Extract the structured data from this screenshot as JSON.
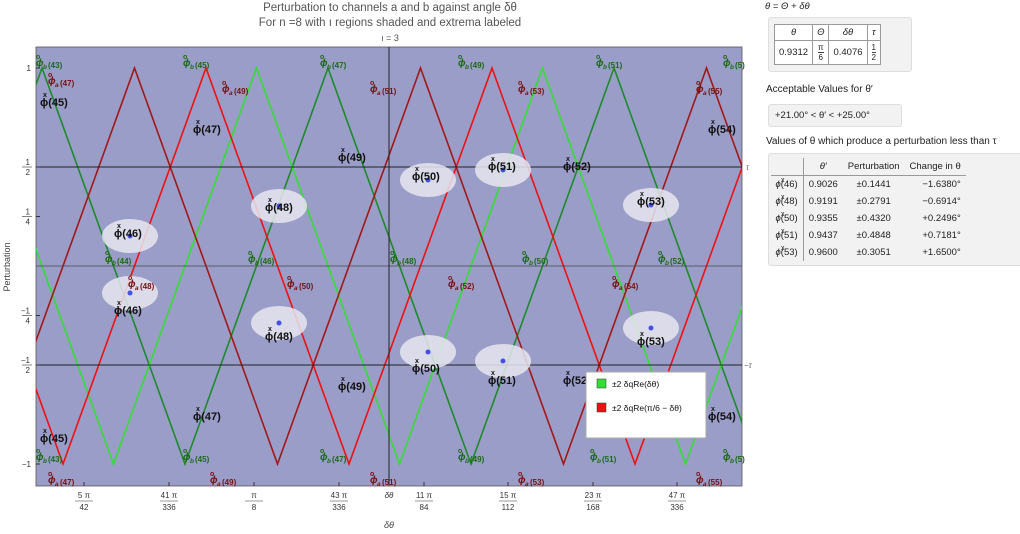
{
  "title_line1": "Perturbation to channels a and b against angle δθ",
  "title_line2": "For n =8  with ı regions shaded and extrema labeled",
  "region_label": "ı = 3",
  "colors": {
    "plot_bg": "#9b9dc9",
    "bright_green": "#33dd33",
    "dark_green": "#1e8a2a",
    "bright_red": "#ee1111",
    "dark_red": "#a01818",
    "ellipse": "#e6e6ee",
    "marker": "#4450e6",
    "label_green": "#1a6a14",
    "label_red": "#7a1010"
  },
  "chart_data": {
    "type": "line",
    "xlabel": "δθ",
    "ylabel": "Perturbation",
    "tau_label": "τ",
    "neg_tau_label": "−τ",
    "x_ticks": [
      {
        "num": "5 π",
        "den": "42"
      },
      {
        "num": "41 π",
        "den": "336"
      },
      {
        "num": "π",
        "den": "8"
      },
      {
        "num": "43 π",
        "den": "336"
      },
      {
        "num": "δθ",
        "den": ""
      },
      {
        "num": "11 π",
        "den": "84"
      },
      {
        "num": "15 π",
        "den": "112"
      },
      {
        "num": "23 π",
        "den": "168"
      },
      {
        "num": "47 π",
        "den": "336"
      }
    ],
    "y_ticks": [
      {
        "num": "1",
        "den": ""
      },
      {
        "num": "1",
        "den": "2"
      },
      {
        "num": "1",
        "den": "4"
      },
      {
        "num": "−1",
        "den": "4"
      },
      {
        "num": "−1",
        "den": "2"
      },
      {
        "num": "−1",
        "den": ""
      }
    ],
    "ylim": [
      -1,
      1
    ],
    "legend": [
      {
        "label": "±2  δqRe(δθ)",
        "color": "#33dd33"
      },
      {
        "label": "±2  δqRe(π/6 − δθ)",
        "color": "#ee1111"
      }
    ],
    "phi_b_labels": [
      "43",
      "45",
      "47",
      "49",
      "51",
      "5",
      "44",
      "46",
      "48",
      "50",
      "52",
      "43",
      "45",
      "47",
      "49",
      "51",
      "5"
    ],
    "phi_a_labels": [
      "47",
      "49",
      "51",
      "53",
      "55",
      "48",
      "50",
      "52",
      "54",
      "47",
      "49",
      "51",
      "53",
      "55"
    ],
    "x_labels_upper": [
      "45",
      "47",
      "49",
      "51",
      "52",
      "54",
      "50",
      "48",
      "46",
      "53"
    ],
    "x_labels_lower": [
      "45",
      "47",
      "49",
      "51",
      "52",
      "54",
      "50",
      "48",
      "46",
      "53"
    ]
  },
  "panel": {
    "formula": "θ = Θ + δθ",
    "top_table": {
      "headers": [
        "θ",
        "Θ",
        "δθ",
        "τ"
      ],
      "values": {
        "theta": "0.9312",
        "Theta_num": "π",
        "Theta_den": "6",
        "dtheta": "0.4076",
        "tau_num": "1",
        "tau_den": "2"
      }
    },
    "acceptable_title": "Acceptable Values for θ′",
    "acceptable_range": "+21.00° < θ′ < +25.00°",
    "values_title": "Values of θ which produce a perturbation less than τ",
    "values_table": {
      "headers": [
        "",
        "θ′",
        "Perturbation",
        "Change in θ"
      ],
      "rows": [
        {
          "id": "46",
          "theta": "0.9026",
          "pert": "±0.1441",
          "change": "−1.6380°"
        },
        {
          "id": "48",
          "theta": "0.9191",
          "pert": "±0.2791",
          "change": "−0.6914°"
        },
        {
          "id": "50",
          "theta": "0.9355",
          "pert": "±0.4320",
          "change": "+0.2496°"
        },
        {
          "id": "51",
          "theta": "0.9437",
          "pert": "±0.4848",
          "change": "+0.7181°"
        },
        {
          "id": "53",
          "theta": "0.9600",
          "pert": "±0.3051",
          "change": "+1.6500°"
        }
      ]
    }
  }
}
